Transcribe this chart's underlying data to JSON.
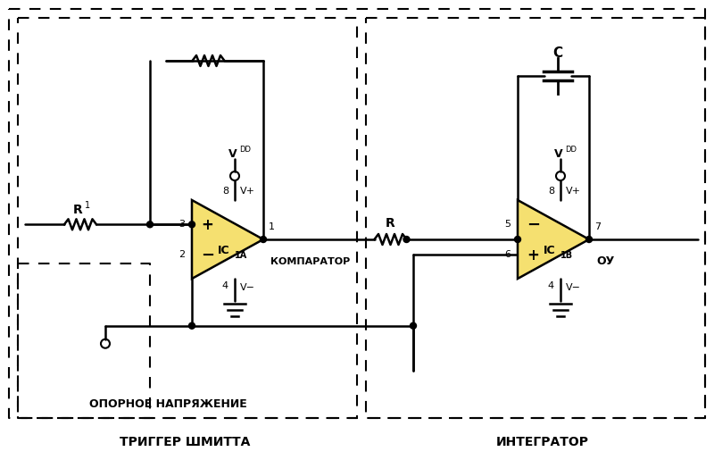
{
  "bg_color": "#ffffff",
  "fill_color": "#f5e070",
  "wire_color": "#000000",
  "fig_width": 8.0,
  "fig_height": 5.15,
  "dpi": 100,
  "label_left_box": "ТРИГГЕР ШМИТТА",
  "label_right_box": "ИНТЕГРАТОР",
  "label_ref_voltage": "ОПОРНОЕ НАПРЯЖЕНИЕ",
  "label_comparator": "КОМПАРАТОР",
  "label_ou": "ОУ",
  "label_ic1a": "IC",
  "label_ic1a_sub": "1A",
  "label_ic1b": "IC",
  "label_ic1b_sub": "1B",
  "label_r1": "R",
  "label_r1_sub": "1",
  "label_r": "R",
  "label_c": "C",
  "label_vdd": "V",
  "label_vdd_sub": "DD",
  "label_vplus": "V+",
  "label_vminus": "V−"
}
